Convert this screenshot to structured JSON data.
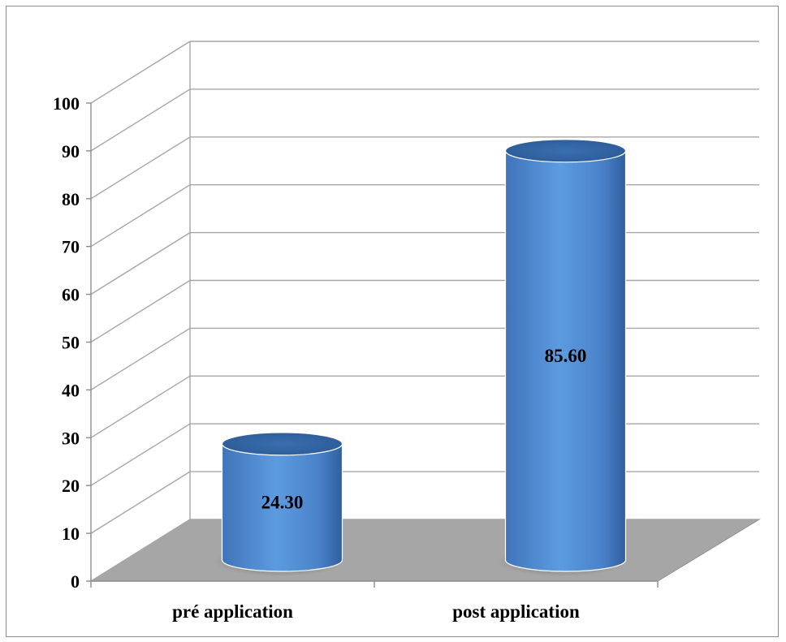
{
  "chart_data": {
    "type": "bar",
    "style": "3d-cylinder",
    "categories": [
      "pré application",
      "post application"
    ],
    "values": [
      24.3,
      85.6
    ],
    "data_labels": [
      "24.30",
      "85.60"
    ],
    "ylim": [
      0,
      100
    ],
    "y_ticks": [
      0,
      10,
      20,
      30,
      40,
      50,
      60,
      70,
      80,
      90,
      100
    ],
    "grid": true,
    "legend": "none",
    "title": "",
    "xlabel": "",
    "ylabel": "",
    "colors": {
      "bar": "#4f8fd9",
      "bar_dark": "#2f5f9e",
      "floor": "#a6a6a6",
      "grid": "#a6a6a6"
    }
  }
}
